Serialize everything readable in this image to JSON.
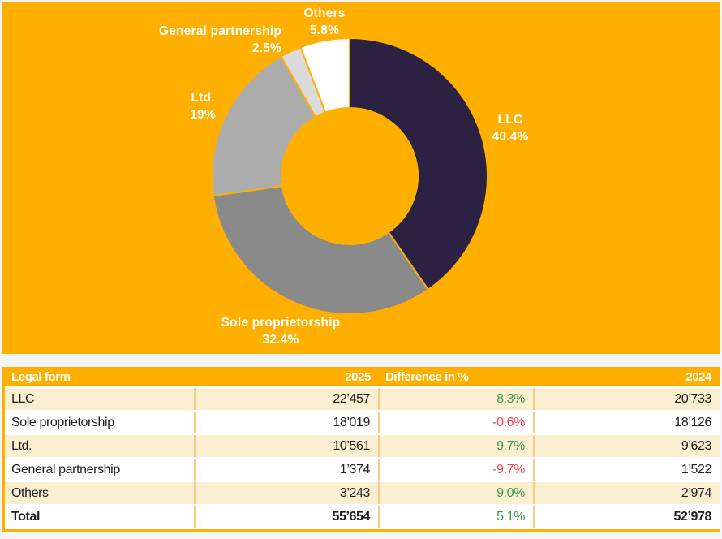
{
  "page": {
    "background": "#F5F5F6",
    "panel_background": "#FFAF00"
  },
  "chart_data": {
    "type": "pie",
    "subtype": "donut",
    "start_angle_deg": 0,
    "direction": "clockwise",
    "segment_gap_color": "#FFAF00",
    "series": [
      {
        "name": "LLC",
        "pct": 40.4,
        "pct_label": "40.4%",
        "color": "#2B2142"
      },
      {
        "name": "Sole proprietorship",
        "pct": 32.4,
        "pct_label": "32.4%",
        "color": "#8A8A8A"
      },
      {
        "name": "Ltd.",
        "pct": 19,
        "pct_label": "19%",
        "color": "#ACACAC"
      },
      {
        "name": "General partnership",
        "pct": 2.5,
        "pct_label": "2.5%",
        "color": "#DBDBDB"
      },
      {
        "name": "Others",
        "pct": 5.8,
        "pct_label": "5.8%",
        "color": "#FFFFFF"
      }
    ]
  },
  "table": {
    "headers": {
      "legal_form": "Legal form",
      "y2025": "2025",
      "diff": "Difference in %",
      "y2024": "2024"
    },
    "rows": [
      {
        "label": "LLC",
        "y2025": "22’457",
        "diff": "8.3%",
        "y2024": "20’733"
      },
      {
        "label": "Sole proprietorship",
        "y2025": "18’019",
        "diff": "-0.6%",
        "y2024": "18’126"
      },
      {
        "label": "Ltd.",
        "y2025": "10’561",
        "diff": "9.7%",
        "y2024": "9’623"
      },
      {
        "label": "General partnership",
        "y2025": "1’374",
        "diff": "-9.7%",
        "y2024": "1’522"
      },
      {
        "label": "Others",
        "y2025": "3’243",
        "diff": "9.0%",
        "y2024": "2’974"
      }
    ],
    "total": {
      "label": "Total",
      "y2025": "55’654",
      "diff": "5.1%",
      "y2024": "52’978"
    },
    "colors": {
      "positive": "#3B9A44",
      "negative": "#F2444E",
      "header_bg": "#FFAF00",
      "alt_row_bg": "#FCEED1"
    }
  }
}
